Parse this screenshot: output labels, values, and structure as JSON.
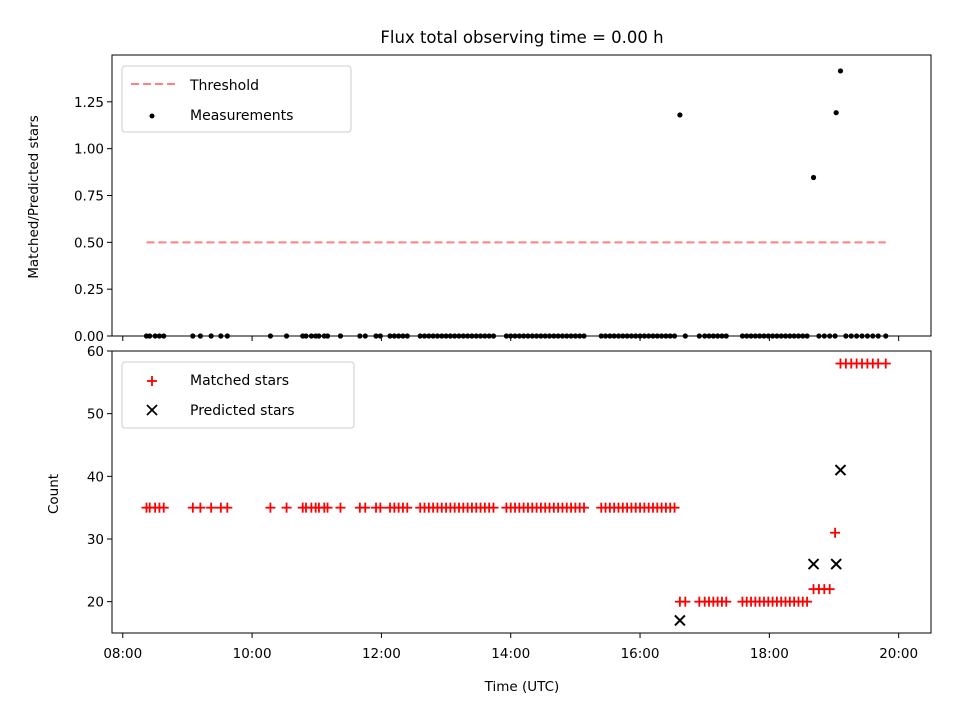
{
  "chart_data": [
    {
      "type": "scatter",
      "title": "Flux total observing time = 0.00 h",
      "xlabel": "",
      "ylabel": "Matched/Predicted stars",
      "xlim": [
        "07:50",
        "20:30"
      ],
      "ylim": [
        0,
        1.5
      ],
      "yticks": [
        0.0,
        0.25,
        0.5,
        0.75,
        1.0,
        1.25
      ],
      "ytick_labels": [
        "0.00",
        "0.25",
        "0.50",
        "0.75",
        "1.00",
        "1.25"
      ],
      "grid": false,
      "legend_placement": "top-left",
      "legend": [
        "Threshold",
        "Measurements"
      ],
      "threshold": {
        "name": "Threshold",
        "y": 0.5,
        "x_start": "08:22",
        "x_end": "19:48",
        "color": "#ff8080",
        "style": "dashed"
      },
      "series": [
        {
          "name": "Measurements",
          "marker": "dot",
          "color": "#000000",
          "points": [
            [
              "08:22",
              0
            ],
            [
              "08:25",
              0
            ],
            [
              "08:30",
              0
            ],
            [
              "08:34",
              0
            ],
            [
              "08:38",
              0
            ],
            [
              "09:05",
              0
            ],
            [
              "09:12",
              0
            ],
            [
              "09:22",
              0
            ],
            [
              "09:31",
              0
            ],
            [
              "09:37",
              0
            ],
            [
              "10:17",
              0
            ],
            [
              "10:32",
              0
            ],
            [
              "10:47",
              0
            ],
            [
              "10:50",
              0
            ],
            [
              "10:55",
              0
            ],
            [
              "10:59",
              0
            ],
            [
              "11:02",
              0
            ],
            [
              "11:07",
              0
            ],
            [
              "11:10",
              0
            ],
            [
              "11:22",
              0
            ],
            [
              "11:40",
              0
            ],
            [
              "11:45",
              0
            ],
            [
              "11:55",
              0
            ],
            [
              "11:59",
              0
            ],
            [
              "12:08",
              0
            ],
            [
              "12:12",
              0
            ],
            [
              "12:16",
              0
            ],
            [
              "12:20",
              0
            ],
            [
              "12:24",
              0
            ],
            [
              "12:36",
              0
            ],
            [
              "12:40",
              0
            ],
            [
              "12:44",
              0
            ],
            [
              "12:48",
              0
            ],
            [
              "12:52",
              0
            ],
            [
              "12:56",
              0
            ],
            [
              "13:00",
              0
            ],
            [
              "13:04",
              0
            ],
            [
              "13:08",
              0
            ],
            [
              "13:12",
              0
            ],
            [
              "13:16",
              0
            ],
            [
              "13:20",
              0
            ],
            [
              "13:24",
              0
            ],
            [
              "13:28",
              0
            ],
            [
              "13:32",
              0
            ],
            [
              "13:36",
              0
            ],
            [
              "13:40",
              0
            ],
            [
              "13:44",
              0
            ],
            [
              "13:56",
              0
            ],
            [
              "14:00",
              0
            ],
            [
              "14:04",
              0
            ],
            [
              "14:08",
              0
            ],
            [
              "14:12",
              0
            ],
            [
              "14:16",
              0
            ],
            [
              "14:20",
              0
            ],
            [
              "14:24",
              0
            ],
            [
              "14:28",
              0
            ],
            [
              "14:32",
              0
            ],
            [
              "14:36",
              0
            ],
            [
              "14:40",
              0
            ],
            [
              "14:44",
              0
            ],
            [
              "14:48",
              0
            ],
            [
              "14:52",
              0
            ],
            [
              "14:56",
              0
            ],
            [
              "15:00",
              0
            ],
            [
              "15:04",
              0
            ],
            [
              "15:08",
              0
            ],
            [
              "15:24",
              0
            ],
            [
              "15:28",
              0
            ],
            [
              "15:32",
              0
            ],
            [
              "15:36",
              0
            ],
            [
              "15:40",
              0
            ],
            [
              "15:44",
              0
            ],
            [
              "15:48",
              0
            ],
            [
              "15:52",
              0
            ],
            [
              "15:56",
              0
            ],
            [
              "16:00",
              0
            ],
            [
              "16:04",
              0
            ],
            [
              "16:08",
              0
            ],
            [
              "16:12",
              0
            ],
            [
              "16:16",
              0
            ],
            [
              "16:20",
              0
            ],
            [
              "16:24",
              0
            ],
            [
              "16:28",
              0
            ],
            [
              "16:32",
              0
            ],
            [
              "16:37",
              1.18
            ],
            [
              "16:42",
              0
            ],
            [
              "16:55",
              0
            ],
            [
              "17:00",
              0
            ],
            [
              "17:04",
              0
            ],
            [
              "17:08",
              0
            ],
            [
              "17:12",
              0
            ],
            [
              "17:16",
              0
            ],
            [
              "17:20",
              0
            ],
            [
              "17:35",
              0
            ],
            [
              "17:39",
              0
            ],
            [
              "17:43",
              0
            ],
            [
              "17:47",
              0
            ],
            [
              "17:51",
              0
            ],
            [
              "17:55",
              0
            ],
            [
              "17:59",
              0
            ],
            [
              "18:03",
              0
            ],
            [
              "18:07",
              0
            ],
            [
              "18:11",
              0
            ],
            [
              "18:15",
              0
            ],
            [
              "18:19",
              0
            ],
            [
              "18:23",
              0
            ],
            [
              "18:27",
              0
            ],
            [
              "18:31",
              0
            ],
            [
              "18:35",
              0
            ],
            [
              "18:41",
              0.846
            ],
            [
              "18:46",
              0
            ],
            [
              "18:51",
              0
            ],
            [
              "18:56",
              0
            ],
            [
              "19:01",
              0
            ],
            [
              "19:02",
              1.192
            ],
            [
              "19:06",
              1.415
            ],
            [
              "19:11",
              0
            ],
            [
              "19:16",
              0
            ],
            [
              "19:21",
              0
            ],
            [
              "19:26",
              0
            ],
            [
              "19:31",
              0
            ],
            [
              "19:36",
              0
            ],
            [
              "19:41",
              0
            ],
            [
              "19:48",
              0
            ]
          ]
        }
      ]
    },
    {
      "type": "scatter",
      "title": "",
      "xlabel": "Time (UTC)",
      "ylabel": "Count",
      "xlim": [
        "07:50",
        "20:30"
      ],
      "ylim": [
        15,
        60
      ],
      "xticks": [
        "08:00",
        "10:00",
        "12:00",
        "14:00",
        "16:00",
        "18:00",
        "20:00"
      ],
      "yticks": [
        20,
        30,
        40,
        50,
        60
      ],
      "grid": false,
      "legend_placement": "top-left",
      "legend": [
        "Matched stars",
        "Predicted stars"
      ],
      "series": [
        {
          "name": "Matched stars",
          "marker": "plus",
          "color": "#ff0000",
          "points": [
            [
              "08:22",
              35
            ],
            [
              "08:25",
              35
            ],
            [
              "08:30",
              35
            ],
            [
              "08:34",
              35
            ],
            [
              "08:38",
              35
            ],
            [
              "09:05",
              35
            ],
            [
              "09:12",
              35
            ],
            [
              "09:22",
              35
            ],
            [
              "09:31",
              35
            ],
            [
              "09:37",
              35
            ],
            [
              "10:17",
              35
            ],
            [
              "10:32",
              35
            ],
            [
              "10:47",
              35
            ],
            [
              "10:50",
              35
            ],
            [
              "10:55",
              35
            ],
            [
              "10:59",
              35
            ],
            [
              "11:02",
              35
            ],
            [
              "11:07",
              35
            ],
            [
              "11:10",
              35
            ],
            [
              "11:22",
              35
            ],
            [
              "11:40",
              35
            ],
            [
              "11:45",
              35
            ],
            [
              "11:55",
              35
            ],
            [
              "11:59",
              35
            ],
            [
              "12:08",
              35
            ],
            [
              "12:12",
              35
            ],
            [
              "12:16",
              35
            ],
            [
              "12:20",
              35
            ],
            [
              "12:24",
              35
            ],
            [
              "12:36",
              35
            ],
            [
              "12:40",
              35
            ],
            [
              "12:44",
              35
            ],
            [
              "12:48",
              35
            ],
            [
              "12:52",
              35
            ],
            [
              "12:56",
              35
            ],
            [
              "13:00",
              35
            ],
            [
              "13:04",
              35
            ],
            [
              "13:08",
              35
            ],
            [
              "13:12",
              35
            ],
            [
              "13:16",
              35
            ],
            [
              "13:20",
              35
            ],
            [
              "13:24",
              35
            ],
            [
              "13:28",
              35
            ],
            [
              "13:32",
              35
            ],
            [
              "13:36",
              35
            ],
            [
              "13:40",
              35
            ],
            [
              "13:44",
              35
            ],
            [
              "13:56",
              35
            ],
            [
              "14:00",
              35
            ],
            [
              "14:04",
              35
            ],
            [
              "14:08",
              35
            ],
            [
              "14:12",
              35
            ],
            [
              "14:16",
              35
            ],
            [
              "14:20",
              35
            ],
            [
              "14:24",
              35
            ],
            [
              "14:28",
              35
            ],
            [
              "14:32",
              35
            ],
            [
              "14:36",
              35
            ],
            [
              "14:40",
              35
            ],
            [
              "14:44",
              35
            ],
            [
              "14:48",
              35
            ],
            [
              "14:52",
              35
            ],
            [
              "14:56",
              35
            ],
            [
              "15:00",
              35
            ],
            [
              "15:04",
              35
            ],
            [
              "15:08",
              35
            ],
            [
              "15:24",
              35
            ],
            [
              "15:28",
              35
            ],
            [
              "15:32",
              35
            ],
            [
              "15:36",
              35
            ],
            [
              "15:40",
              35
            ],
            [
              "15:44",
              35
            ],
            [
              "15:48",
              35
            ],
            [
              "15:52",
              35
            ],
            [
              "15:56",
              35
            ],
            [
              "16:00",
              35
            ],
            [
              "16:04",
              35
            ],
            [
              "16:08",
              35
            ],
            [
              "16:12",
              35
            ],
            [
              "16:16",
              35
            ],
            [
              "16:20",
              35
            ],
            [
              "16:24",
              35
            ],
            [
              "16:28",
              35
            ],
            [
              "16:32",
              35
            ],
            [
              "16:37",
              20
            ],
            [
              "16:42",
              20
            ],
            [
              "16:55",
              20
            ],
            [
              "17:00",
              20
            ],
            [
              "17:04",
              20
            ],
            [
              "17:08",
              20
            ],
            [
              "17:12",
              20
            ],
            [
              "17:16",
              20
            ],
            [
              "17:20",
              20
            ],
            [
              "17:35",
              20
            ],
            [
              "17:39",
              20
            ],
            [
              "17:43",
              20
            ],
            [
              "17:47",
              20
            ],
            [
              "17:51",
              20
            ],
            [
              "17:55",
              20
            ],
            [
              "17:59",
              20
            ],
            [
              "18:03",
              20
            ],
            [
              "18:07",
              20
            ],
            [
              "18:11",
              20
            ],
            [
              "18:15",
              20
            ],
            [
              "18:19",
              20
            ],
            [
              "18:23",
              20
            ],
            [
              "18:27",
              20
            ],
            [
              "18:31",
              20
            ],
            [
              "18:35",
              20
            ],
            [
              "18:41",
              22
            ],
            [
              "18:46",
              22
            ],
            [
              "18:51",
              22
            ],
            [
              "18:56",
              22
            ],
            [
              "19:01",
              31
            ],
            [
              "19:06",
              58
            ],
            [
              "19:11",
              58
            ],
            [
              "19:16",
              58
            ],
            [
              "19:21",
              58
            ],
            [
              "19:26",
              58
            ],
            [
              "19:31",
              58
            ],
            [
              "19:36",
              58
            ],
            [
              "19:41",
              58
            ],
            [
              "19:48",
              58
            ]
          ]
        },
        {
          "name": "Predicted stars",
          "marker": "x",
          "color": "#000000",
          "points": [
            [
              "16:37",
              17
            ],
            [
              "18:41",
              26
            ],
            [
              "19:02",
              26
            ],
            [
              "19:06",
              41
            ]
          ]
        }
      ]
    }
  ]
}
